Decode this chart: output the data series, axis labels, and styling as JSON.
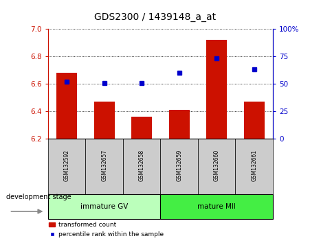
{
  "title": "GDS2300 / 1439148_a_at",
  "categories": [
    "GSM132592",
    "GSM132657",
    "GSM132658",
    "GSM132659",
    "GSM132660",
    "GSM132661"
  ],
  "bar_values": [
    6.68,
    6.47,
    6.36,
    6.41,
    6.92,
    6.47
  ],
  "bar_bottom": 6.2,
  "blue_markers_pct": [
    52,
    51,
    51,
    60,
    73,
    63
  ],
  "ylim_left": [
    6.2,
    7.0
  ],
  "ylim_right": [
    0,
    100
  ],
  "yticks_left": [
    6.2,
    6.4,
    6.6,
    6.8,
    7.0
  ],
  "yticks_right": [
    0,
    25,
    50,
    75,
    100
  ],
  "bar_color": "#cc1100",
  "marker_color": "#0000cc",
  "group1_label": "immature GV",
  "group2_label": "mature MII",
  "group1_color": "#bbffbb",
  "group2_color": "#44ee44",
  "stage_label": "development stage",
  "legend_bar": "transformed count",
  "legend_marker": "percentile rank within the sample",
  "label_bg": "#cccccc",
  "title_fontsize": 10
}
